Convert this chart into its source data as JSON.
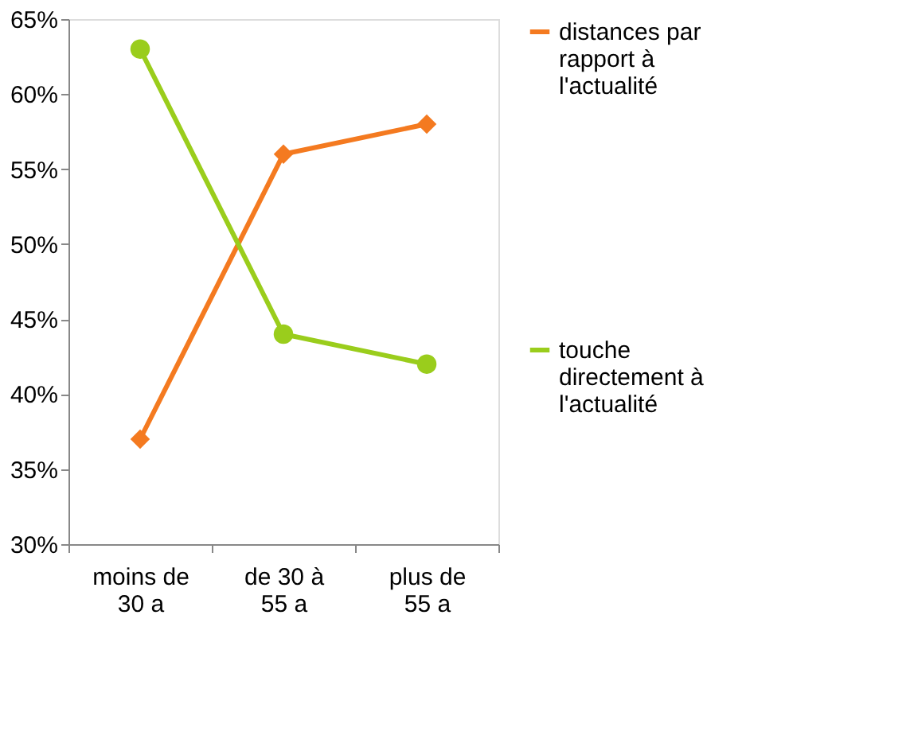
{
  "chart_data": {
    "type": "line",
    "categories": [
      "moins de 30 a",
      "de 30 à 55 a",
      "plus de 55 a"
    ],
    "series": [
      {
        "name": "distances par rapport à l'actualité",
        "color": "#f47a20",
        "marker": "diamond",
        "values": [
          0.37,
          0.56,
          0.58
        ]
      },
      {
        "name": "touche directement à l'actualité",
        "color": "#9acd1c",
        "marker": "circle",
        "values": [
          0.63,
          0.44,
          0.42
        ]
      }
    ],
    "ylim": [
      0.3,
      0.65
    ],
    "yticks": [
      {
        "value": 0.3,
        "label": "30%"
      },
      {
        "value": 0.35,
        "label": "35%"
      },
      {
        "value": 0.4,
        "label": "40%"
      },
      {
        "value": 0.45,
        "label": "45%"
      },
      {
        "value": 0.5,
        "label": "50%"
      },
      {
        "value": 0.55,
        "label": "55%"
      },
      {
        "value": 0.6,
        "label": "60%"
      },
      {
        "value": 0.65,
        "label": "65%"
      }
    ],
    "grid": false,
    "legend": "right",
    "line_style": "solid"
  }
}
